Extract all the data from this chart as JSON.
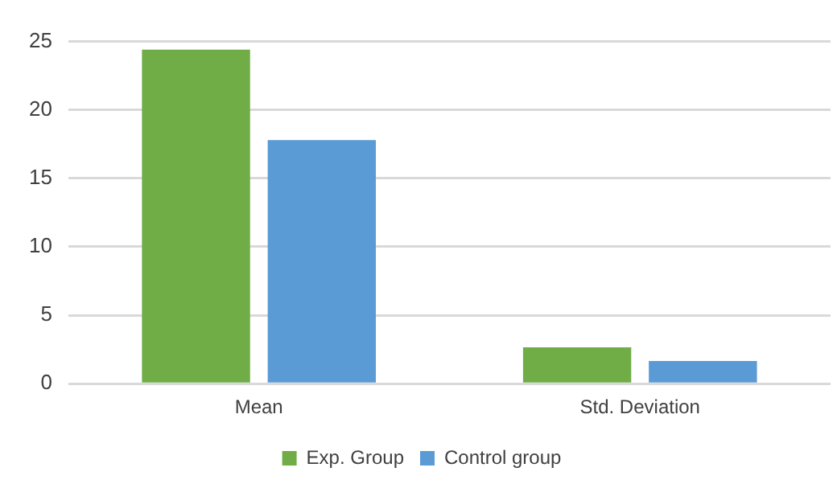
{
  "chart_data": {
    "type": "bar",
    "categories": [
      "Mean",
      "Std. Deviation"
    ],
    "series": [
      {
        "name": "Exp. Group",
        "color": "#70ad47",
        "values": [
          24.4,
          2.65
        ]
      },
      {
        "name": "Control group",
        "color": "#5b9bd5",
        "values": [
          17.8,
          1.65
        ]
      }
    ],
    "ylim": [
      0,
      25
    ],
    "yticks": [
      0,
      5,
      10,
      15,
      20,
      25
    ],
    "grid": "y",
    "legend": "bottom"
  }
}
